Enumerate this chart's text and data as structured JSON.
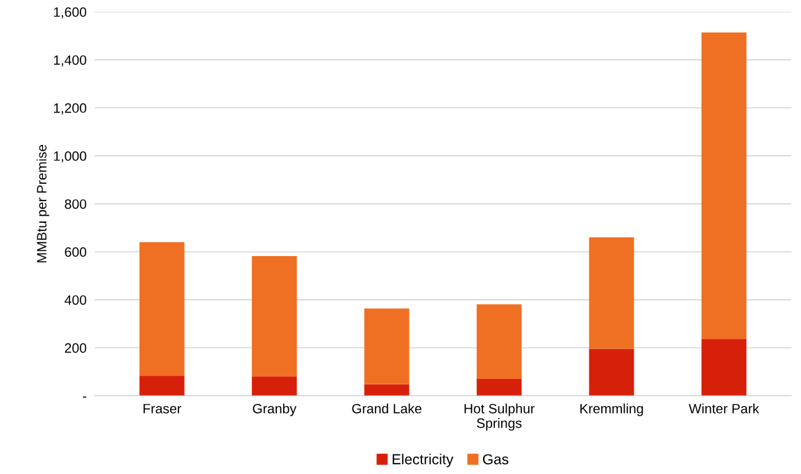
{
  "chart_data": {
    "type": "bar",
    "stacked": true,
    "ylabel": "MMBtu per Premise",
    "categories": [
      "Fraser",
      "Granby",
      "Grand Lake",
      "Hot Sulphur\nSprings",
      "Kremmling",
      "Winter Park"
    ],
    "series": [
      {
        "name": "Electricity",
        "color": "#d7200a",
        "values": [
          84,
          81,
          48,
          70,
          196,
          237
        ]
      },
      {
        "name": "Gas",
        "color": "#f07023",
        "values": [
          556,
          501,
          316,
          311,
          464,
          1277
        ]
      }
    ],
    "ylim": [
      0,
      1600
    ],
    "yticks": [
      {
        "value": 0,
        "label": "-"
      },
      {
        "value": 200,
        "label": "200"
      },
      {
        "value": 400,
        "label": "400"
      },
      {
        "value": 600,
        "label": "600"
      },
      {
        "value": 800,
        "label": "800"
      },
      {
        "value": 1000,
        "label": "1,000"
      },
      {
        "value": 1200,
        "label": "1,200"
      },
      {
        "value": 1400,
        "label": "1,400"
      },
      {
        "value": 1600,
        "label": "1,600"
      }
    ],
    "grid": "y",
    "legend": "bottom"
  }
}
